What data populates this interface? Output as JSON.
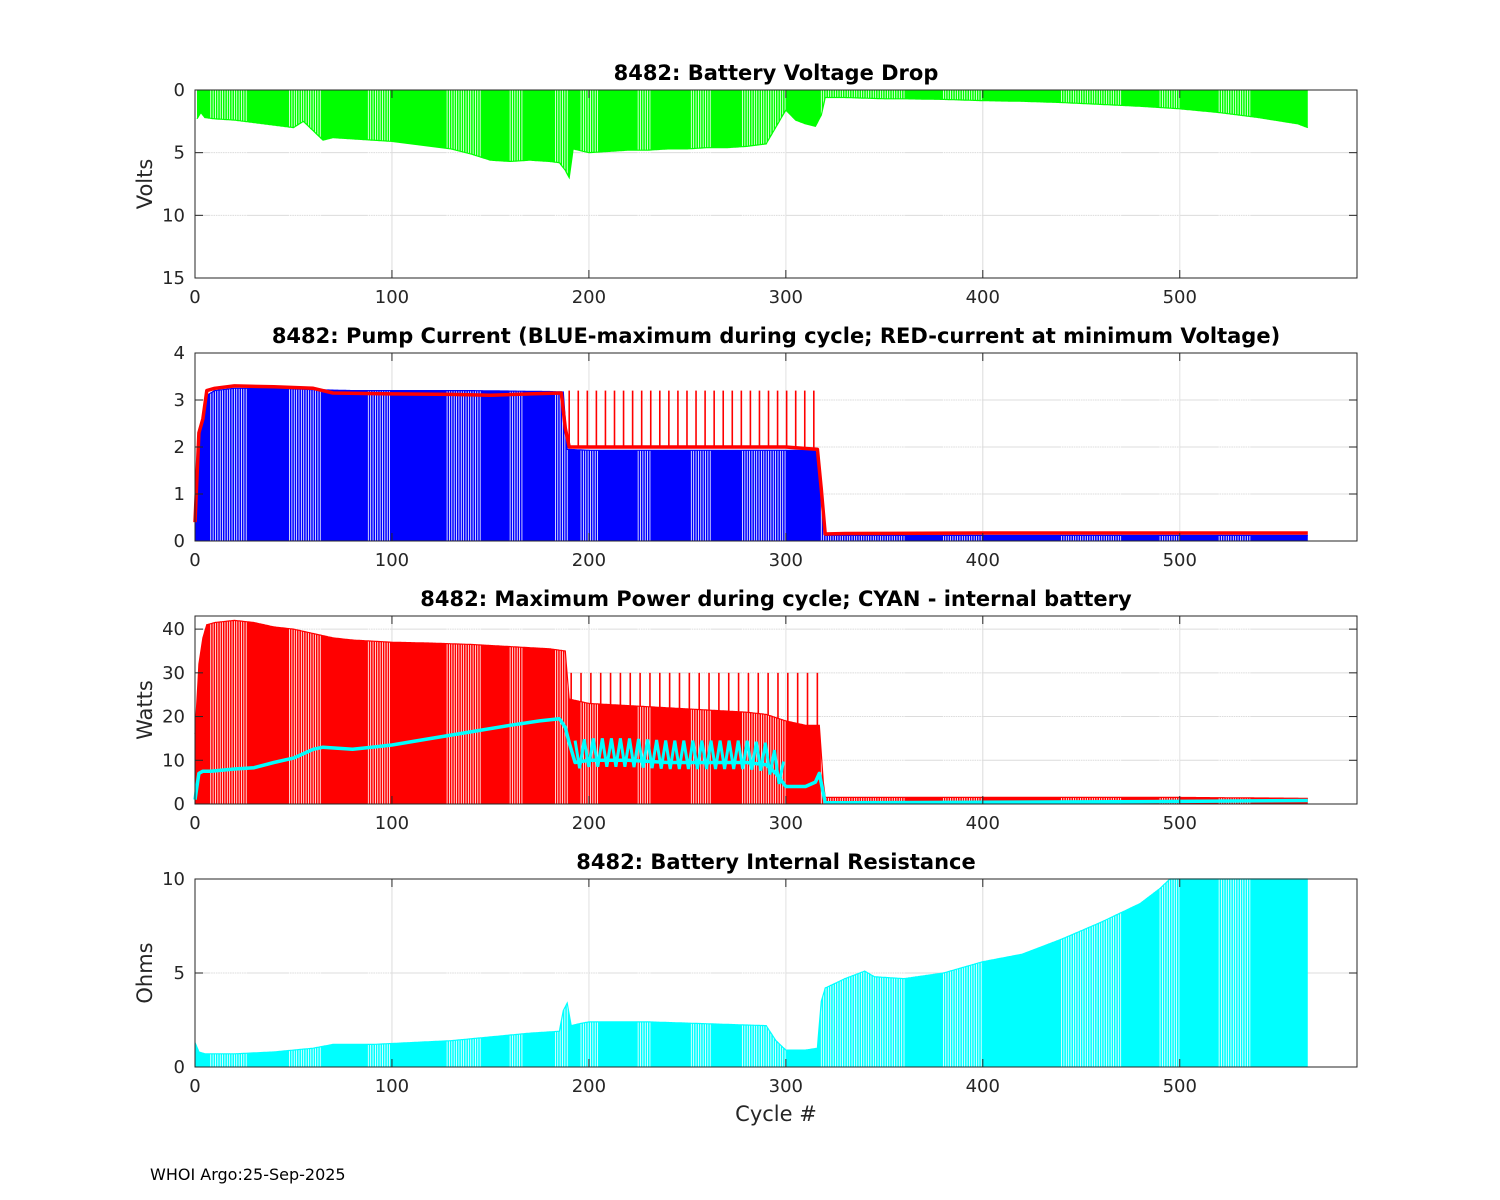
{
  "footer": "WHOI Argo:25-Sep-2025",
  "colors": {
    "green": "#00ff00",
    "blue": "#0000ff",
    "red": "#ff0000",
    "cyan": "#00ffff",
    "grid": "#dcdcdc",
    "axis": "#262626"
  },
  "chart_data": [
    {
      "type": "bar",
      "title": "8482: Battery Voltage Drop",
      "ylabel": "Volts",
      "xlabel": "",
      "xlim": [
        0,
        590
      ],
      "ylim": [
        0,
        15
      ],
      "y_reversed": true,
      "xticks": [
        0,
        100,
        200,
        300,
        400,
        500
      ],
      "yticks": [
        0,
        5,
        10,
        15
      ],
      "grid": true,
      "series": [
        {
          "name": "Voltage drop",
          "color": "#00ff00",
          "style": "stem",
          "x": [
            1,
            3,
            5,
            10,
            20,
            30,
            40,
            50,
            55,
            65,
            70,
            80,
            90,
            100,
            110,
            120,
            130,
            140,
            150,
            160,
            170,
            180,
            185,
            188,
            190,
            192,
            200,
            210,
            220,
            230,
            240,
            250,
            260,
            270,
            280,
            290,
            300,
            305,
            310,
            315,
            318,
            320,
            330,
            340,
            350,
            360,
            380,
            400,
            420,
            440,
            460,
            480,
            500,
            520,
            540,
            560,
            565
          ],
          "values": [
            2.3,
            1.8,
            2.2,
            2.3,
            2.4,
            2.6,
            2.8,
            3.0,
            2.5,
            4.0,
            3.8,
            3.9,
            4.0,
            4.1,
            4.3,
            4.5,
            4.7,
            5.1,
            5.6,
            5.7,
            5.6,
            5.7,
            5.8,
            6.4,
            7.0,
            4.7,
            5.0,
            4.9,
            4.8,
            4.8,
            4.7,
            4.7,
            4.6,
            4.6,
            4.5,
            4.3,
            1.6,
            2.4,
            2.7,
            2.9,
            2.0,
            0.6,
            0.6,
            0.65,
            0.7,
            0.7,
            0.75,
            0.85,
            0.9,
            1.0,
            1.15,
            1.3,
            1.5,
            1.8,
            2.2,
            2.7,
            3.0
          ]
        }
      ]
    },
    {
      "type": "bar",
      "title": "8482: Pump Current (BLUE-maximum during cycle; RED-current at minimum Voltage)",
      "ylabel": "",
      "xlabel": "",
      "xlim": [
        0,
        590
      ],
      "ylim": [
        0,
        4
      ],
      "y_reversed": false,
      "xticks": [
        0,
        100,
        200,
        300,
        400,
        500
      ],
      "yticks": [
        0,
        1,
        2,
        3,
        4
      ],
      "grid": true,
      "series": [
        {
          "name": "BLUE-maximum during cycle",
          "color": "#0000ff",
          "style": "stem",
          "x": [
            0,
            2,
            4,
            6,
            10,
            20,
            40,
            60,
            80,
            100,
            140,
            180,
            187,
            189,
            200,
            250,
            300,
            315,
            318,
            320,
            330,
            400,
            500,
            565
          ],
          "values": [
            0.5,
            2.0,
            2.6,
            3.1,
            3.2,
            3.25,
            3.25,
            3.22,
            3.2,
            3.2,
            3.2,
            3.18,
            3.17,
            1.95,
            1.93,
            1.93,
            1.93,
            1.93,
            1.2,
            0.12,
            0.12,
            0.12,
            0.12,
            0.12
          ]
        },
        {
          "name": "RED-current at minimum Voltage",
          "color": "#ff0000",
          "style": "line",
          "x": [
            0,
            2,
            4,
            6,
            10,
            20,
            40,
            60,
            70,
            100,
            130,
            150,
            170,
            186,
            188,
            190,
            200,
            250,
            300,
            316,
            318,
            320,
            330,
            400,
            500,
            565
          ],
          "values": [
            0.4,
            2.3,
            2.6,
            3.2,
            3.25,
            3.3,
            3.28,
            3.25,
            3.15,
            3.13,
            3.12,
            3.1,
            3.13,
            3.15,
            2.4,
            2.0,
            2.0,
            2.0,
            2.0,
            1.95,
            1.1,
            0.15,
            0.16,
            0.17,
            0.17,
            0.17
          ]
        },
        {
          "name": "RED spikes (every ~6 cycles)",
          "color": "#ff0000",
          "style": "spikes",
          "range": [
            190,
            317
          ],
          "step": 4.6,
          "peak": 3.2
        }
      ]
    },
    {
      "type": "bar",
      "title": "8482: Maximum Power during cycle; CYAN - internal battery",
      "ylabel": "Watts",
      "xlabel": "",
      "xlim": [
        0,
        590
      ],
      "ylim": [
        0,
        43
      ],
      "y_reversed": false,
      "xticks": [
        0,
        100,
        200,
        300,
        400,
        500
      ],
      "yticks": [
        0,
        10,
        20,
        30,
        40
      ],
      "grid": true,
      "series": [
        {
          "name": "Maximum Power",
          "color": "#ff0000",
          "style": "stem",
          "x": [
            0,
            2,
            4,
            6,
            10,
            20,
            30,
            40,
            50,
            60,
            70,
            80,
            100,
            120,
            140,
            160,
            180,
            188,
            190,
            195,
            200,
            220,
            240,
            260,
            280,
            290,
            300,
            310,
            317,
            319,
            320,
            330,
            400,
            500,
            565
          ],
          "values": [
            16,
            32,
            38,
            41,
            41.5,
            42,
            41.5,
            40.5,
            40,
            39,
            38,
            37.5,
            37,
            36.8,
            36.5,
            36,
            35.5,
            35,
            24,
            23.5,
            23,
            22.5,
            22,
            21.5,
            21,
            20.5,
            19,
            18,
            18,
            5,
            1.5,
            1.5,
            1.5,
            1.5,
            1.3
          ]
        },
        {
          "name": "Maximum Power spikes",
          "color": "#ff0000",
          "style": "spikes",
          "range": [
            191,
            317
          ],
          "step": 5,
          "peak": 30
        },
        {
          "name": "CYAN - internal battery",
          "color": "#00ffff",
          "style": "line",
          "x": [
            0,
            2,
            4,
            8,
            20,
            30,
            40,
            50,
            60,
            65,
            80,
            100,
            120,
            140,
            160,
            175,
            185,
            188,
            190,
            193,
            200,
            220,
            240,
            260,
            280,
            290,
            295,
            300,
            310,
            315,
            317,
            320,
            330,
            400,
            500,
            565
          ],
          "values": [
            1.0,
            7.0,
            7.5,
            7.5,
            8.0,
            8.3,
            9.5,
            10.5,
            12.5,
            13.0,
            12.5,
            13.5,
            15.0,
            16.5,
            18.0,
            19.0,
            19.5,
            17.5,
            14.0,
            9.5,
            10.0,
            10.0,
            9.5,
            9.5,
            9.5,
            9.0,
            7.0,
            4.0,
            4.0,
            5.0,
            7.0,
            0.3,
            0.3,
            0.4,
            0.6,
            0.8
          ]
        },
        {
          "name": "CYAN oscillations",
          "color": "#00ffff",
          "style": "wiggle",
          "range": [
            193,
            300
          ],
          "step": 4.6,
          "peak": 15.0
        }
      ]
    },
    {
      "type": "bar",
      "title": "8482: Battery Internal Resistance",
      "ylabel": "Ohms",
      "xlabel": "Cycle #",
      "xlim": [
        0,
        590
      ],
      "ylim": [
        0,
        10
      ],
      "y_reversed": false,
      "xticks": [
        0,
        100,
        200,
        300,
        400,
        500
      ],
      "yticks": [
        0,
        5,
        10
      ],
      "grid": true,
      "series": [
        {
          "name": "Internal Resistance",
          "color": "#00ffff",
          "style": "stem",
          "x": [
            0,
            2,
            5,
            20,
            40,
            60,
            70,
            90,
            110,
            130,
            150,
            170,
            185,
            187,
            189,
            191,
            195,
            200,
            230,
            260,
            290,
            295,
            300,
            310,
            316,
            318,
            320,
            330,
            340,
            345,
            360,
            380,
            400,
            420,
            440,
            460,
            480,
            490,
            495,
            500,
            565
          ],
          "values": [
            1.3,
            0.8,
            0.7,
            0.7,
            0.8,
            1.0,
            1.2,
            1.2,
            1.3,
            1.4,
            1.6,
            1.8,
            1.9,
            3.0,
            3.4,
            2.2,
            2.3,
            2.4,
            2.4,
            2.3,
            2.2,
            1.4,
            0.9,
            0.9,
            1.0,
            3.5,
            4.2,
            4.7,
            5.1,
            4.8,
            4.7,
            5.0,
            5.6,
            6.0,
            6.8,
            7.7,
            8.7,
            9.5,
            10.0,
            10.0,
            10.0
          ]
        }
      ]
    }
  ]
}
